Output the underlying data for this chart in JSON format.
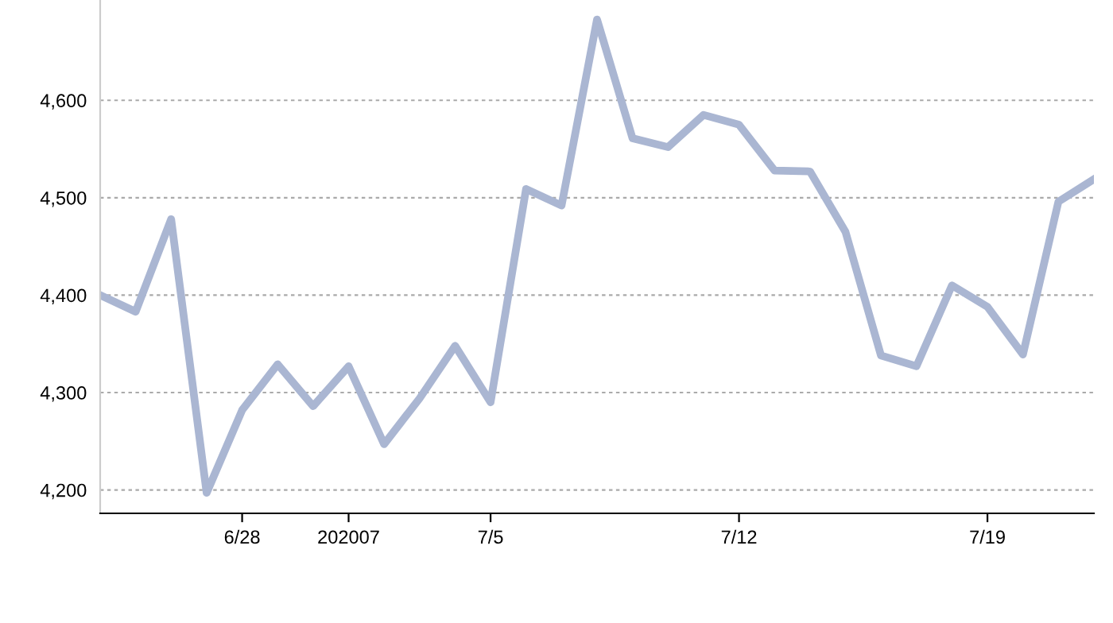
{
  "chart_data": {
    "type": "line",
    "color": "#aab6d2",
    "x": [
      "2020-06-24",
      "2020-06-25",
      "2020-06-26",
      "2020-06-27",
      "2020-06-28",
      "2020-06-29",
      "2020-06-30",
      "2020-07-01",
      "2020-07-02",
      "2020-07-03",
      "2020-07-04",
      "2020-07-05",
      "2020-07-06",
      "2020-07-07",
      "2020-07-08",
      "2020-07-09",
      "2020-07-10",
      "2020-07-11",
      "2020-07-12",
      "2020-07-13",
      "2020-07-14",
      "2020-07-15",
      "2020-07-16",
      "2020-07-17",
      "2020-07-18",
      "2020-07-19",
      "2020-07-20",
      "2020-07-21",
      "2020-07-22"
    ],
    "values": [
      4400,
      4383,
      4478,
      4197,
      4282,
      4329,
      4286,
      4327,
      4247,
      4294,
      4348,
      4290,
      4509,
      4492,
      4683,
      4561,
      4552,
      4585,
      4575,
      4528,
      4527,
      4465,
      4338,
      4327,
      4410,
      4388,
      4339,
      4496,
      4519
    ],
    "xlim": [
      "2020-06-24",
      "2020-07-22"
    ],
    "xticks": [
      {
        "value": "2020-06-28",
        "label": "6/28"
      },
      {
        "value": "2020-07-01",
        "label": "202007"
      },
      {
        "value": "2020-07-05",
        "label": "7/5"
      },
      {
        "value": "2020-07-12",
        "label": "7/12"
      },
      {
        "value": "2020-07-19",
        "label": "7/19"
      }
    ],
    "ylim": [
      4176,
      4703
    ],
    "yticks": [
      {
        "value": 4200,
        "label": "4,200"
      },
      {
        "value": 4300,
        "label": "4,300"
      },
      {
        "value": 4400,
        "label": "4,400"
      },
      {
        "value": 4500,
        "label": "4,500"
      },
      {
        "value": 4600,
        "label": "4,600"
      }
    ],
    "grid": "y",
    "line_style": "solid",
    "marker": "none",
    "legend": false
  }
}
